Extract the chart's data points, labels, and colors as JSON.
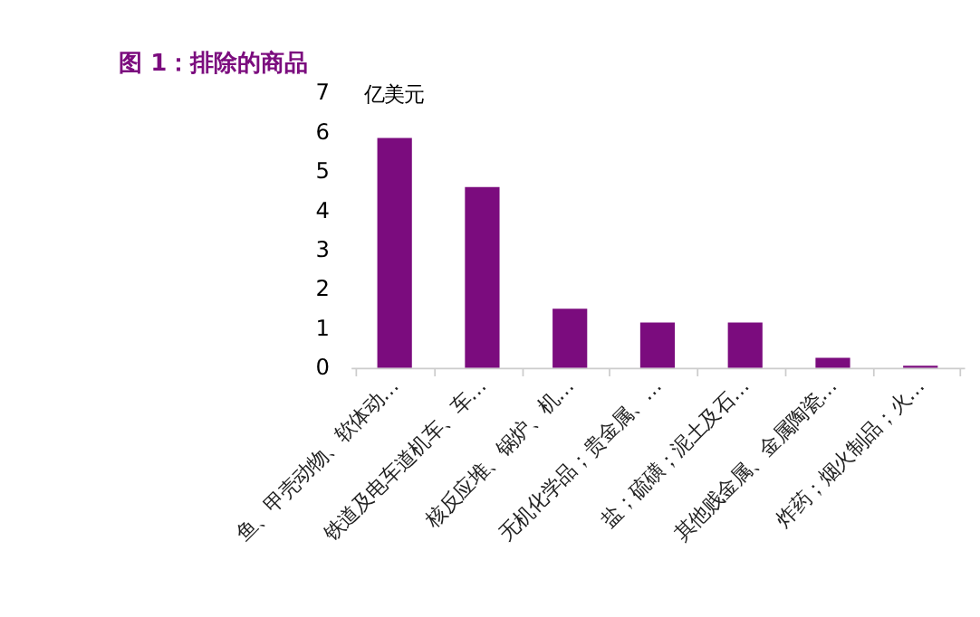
{
  "chart_data": {
    "type": "bar",
    "title": "图 1：排除的商品",
    "ylabel": "亿美元",
    "categories": [
      "鱼、甲壳动物、软体动…",
      "铁道及电车道机车、车…",
      "核反应堆、锅炉、机…",
      "无机化学品；贵金属、…",
      "盐；硫磺；泥土及石…",
      "其他贱金属、金属陶瓷…",
      "炸药；烟火制品；火…"
    ],
    "values": [
      5.85,
      4.6,
      1.5,
      1.15,
      1.15,
      0.25,
      0.05
    ],
    "color": "#7b0c7e",
    "ylim": [
      0,
      7
    ],
    "yticks": [
      0,
      1,
      2,
      3,
      4,
      5,
      6,
      7
    ],
    "grid": false
  }
}
